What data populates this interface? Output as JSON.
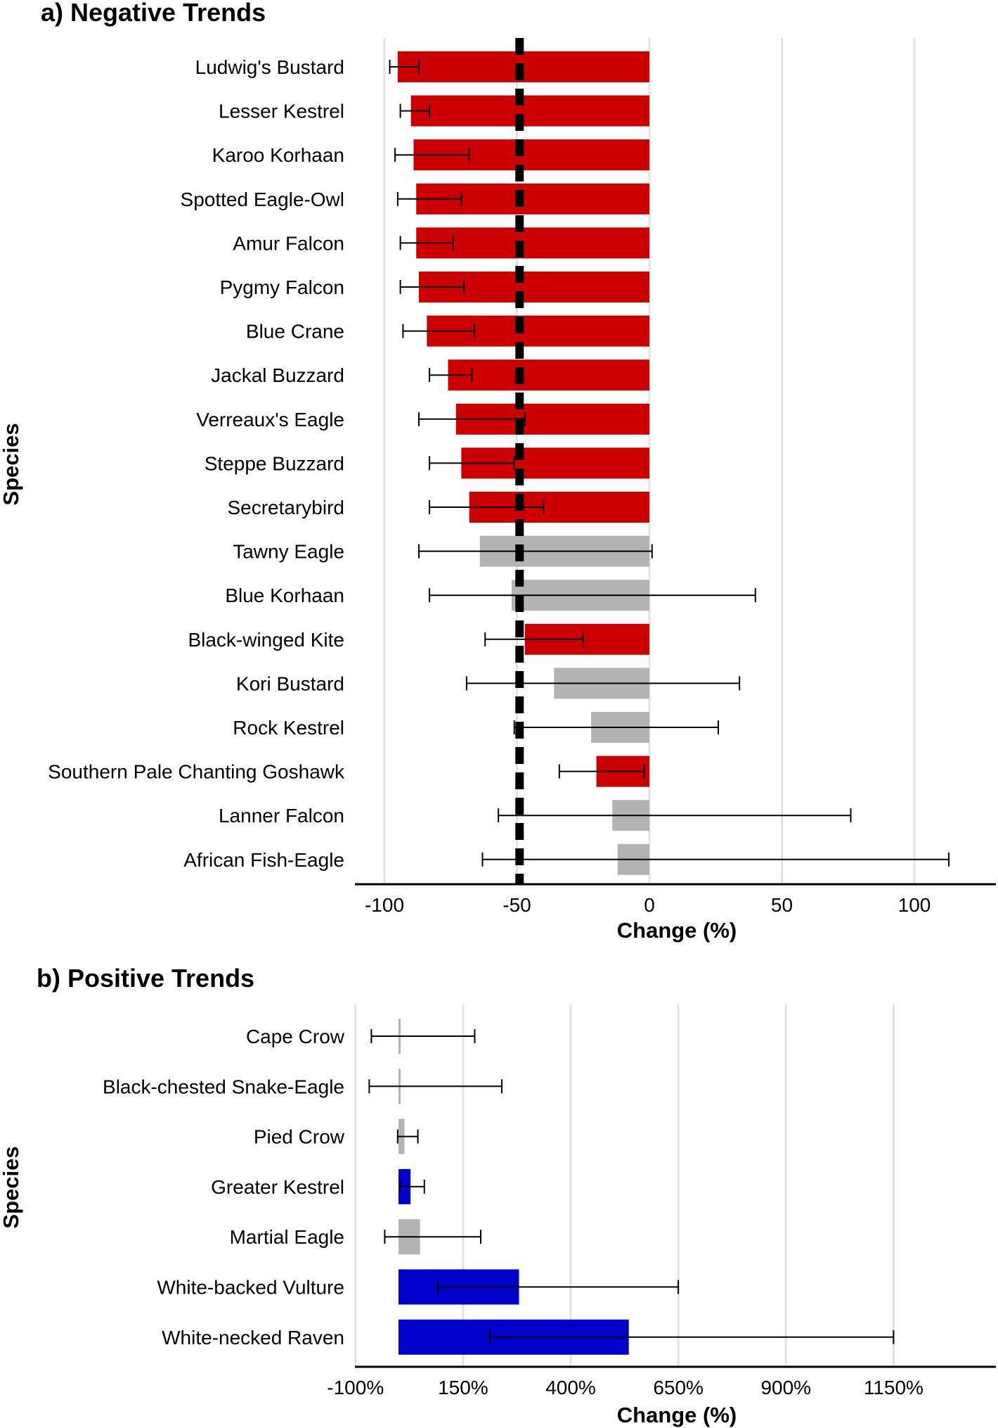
{
  "chart_data": [
    {
      "type": "bar",
      "orientation": "horizontal",
      "title": "a) Negative Trends",
      "xlabel": "Change (%)",
      "ylabel": "Species",
      "xlim": [
        -111,
        131
      ],
      "xticks": [
        -100,
        -50,
        0,
        50,
        100
      ],
      "xtick_labels": [
        "-100",
        "-50",
        "0",
        "50",
        "100"
      ],
      "grid": "vertical",
      "reference_line": {
        "x": -49,
        "style": "dashed",
        "color": "#000000"
      },
      "colors": {
        "significant": "#cc0000",
        "non_significant": "#b3b3b3"
      },
      "categories": [
        "Ludwig's Bustard",
        "Lesser Kestrel",
        "Karoo Korhaan",
        "Spotted Eagle-Owl",
        "Amur Falcon",
        "Pygmy Falcon",
        "Blue Crane",
        "Jackal Buzzard",
        "Verreaux's Eagle",
        "Steppe Buzzard",
        "Secretarybird",
        "Tawny Eagle",
        "Blue Korhaan",
        "Black-winged Kite",
        "Kori Bustard",
        "Rock Kestrel",
        "Southern Pale Chanting Goshawk",
        "Lanner Falcon",
        "African Fish-Eagle"
      ],
      "values": [
        -95,
        -90,
        -89,
        -88,
        -88,
        -87,
        -84,
        -76,
        -73,
        -71,
        -68,
        -64,
        -52,
        -47,
        -36,
        -22,
        -20,
        -14,
        -12
      ],
      "ci_low": [
        -98,
        -94,
        -96,
        -95,
        -94,
        -94,
        -93,
        -83,
        -87,
        -83,
        -83,
        -87,
        -83,
        -62,
        -69,
        -51,
        -34,
        -57,
        -63
      ],
      "ci_high": [
        -87,
        -83,
        -68,
        -71,
        -74,
        -70,
        -66,
        -67,
        -47,
        -51,
        -40,
        1,
        40,
        -25,
        34,
        26,
        -2,
        76,
        113
      ],
      "significant": [
        true,
        true,
        true,
        true,
        true,
        true,
        true,
        true,
        true,
        true,
        true,
        false,
        false,
        true,
        false,
        false,
        true,
        false,
        false
      ]
    },
    {
      "type": "bar",
      "orientation": "horizontal",
      "title": "b) Positive Trends",
      "xlabel": "Change (%)",
      "ylabel": "Species",
      "xlim": [
        -100,
        1380
      ],
      "xticks": [
        -100,
        150,
        400,
        650,
        900,
        1150
      ],
      "xtick_labels": [
        "-100%",
        "150%",
        "400%",
        "650%",
        "900%",
        "1150%"
      ],
      "grid": "vertical",
      "colors": {
        "significant": "#0000cc",
        "non_significant": "#b3b3b3"
      },
      "categories": [
        "Cape Crow",
        "Black-chested Snake-Eagle",
        "Pied Crow",
        "Greater Kestrel",
        "Martial Eagle",
        "White-backed Vulture",
        "White-necked Raven"
      ],
      "values": [
        5,
        5,
        14,
        28,
        50,
        280,
        535
      ],
      "ci_low": [
        -63,
        -68,
        -2,
        3,
        -32,
        91,
        212
      ],
      "ci_high": [
        177,
        240,
        45,
        60,
        191,
        650,
        1150
      ],
      "significant": [
        false,
        false,
        false,
        true,
        false,
        true,
        true
      ],
      "bar_origin": 0
    }
  ]
}
